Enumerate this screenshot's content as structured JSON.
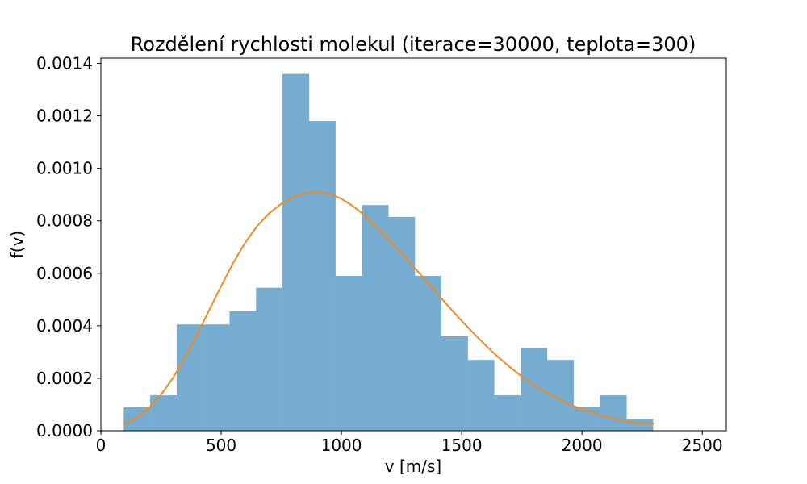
{
  "chart_data": {
    "type": "bar",
    "title": "Rozdělení rychlosti molekul (iterace=30000, teplota=300)",
    "xlabel": "v [m/s]",
    "ylabel": "f(v)",
    "xlim": [
      0,
      2600
    ],
    "ylim": [
      0,
      0.00142
    ],
    "xticks": [
      0,
      500,
      1000,
      1500,
      2000,
      2500
    ],
    "xtick_labels": [
      "0",
      "500",
      "1000",
      "1500",
      "2000",
      "2500"
    ],
    "yticks": [
      0,
      0.0002,
      0.0004,
      0.0006,
      0.0008,
      0.001,
      0.0012,
      0.0014
    ],
    "ytick_labels": [
      "0.0000",
      "0.0002",
      "0.0004",
      "0.0006",
      "0.0008",
      "0.0010",
      "0.0012",
      "0.0014"
    ],
    "grid": false,
    "histogram": {
      "color": "#77acd1",
      "bins": [
        {
          "x0": 95,
          "x1": 205,
          "value": 9e-05
        },
        {
          "x0": 205,
          "x1": 315,
          "value": 0.000135
        },
        {
          "x0": 315,
          "x1": 425,
          "value": 0.000405
        },
        {
          "x0": 425,
          "x1": 535,
          "value": 0.000405
        },
        {
          "x0": 535,
          "x1": 645,
          "value": 0.000455
        },
        {
          "x0": 645,
          "x1": 755,
          "value": 0.000545
        },
        {
          "x0": 755,
          "x1": 865,
          "value": 0.00136
        },
        {
          "x0": 865,
          "x1": 975,
          "value": 0.00118
        },
        {
          "x0": 975,
          "x1": 1085,
          "value": 0.00059
        },
        {
          "x0": 1085,
          "x1": 1195,
          "value": 0.00086
        },
        {
          "x0": 1195,
          "x1": 1305,
          "value": 0.000815
        },
        {
          "x0": 1305,
          "x1": 1415,
          "value": 0.00059
        },
        {
          "x0": 1415,
          "x1": 1525,
          "value": 0.00036
        },
        {
          "x0": 1525,
          "x1": 1635,
          "value": 0.00027
        },
        {
          "x0": 1635,
          "x1": 1745,
          "value": 0.000135
        },
        {
          "x0": 1745,
          "x1": 1855,
          "value": 0.000315
        },
        {
          "x0": 1855,
          "x1": 1965,
          "value": 0.00027
        },
        {
          "x0": 1965,
          "x1": 2075,
          "value": 9e-05
        },
        {
          "x0": 2075,
          "x1": 2185,
          "value": 0.000135
        },
        {
          "x0": 2185,
          "x1": 2295,
          "value": 4.5e-05
        }
      ]
    },
    "curve": {
      "color": "#f08a24",
      "x": [
        95,
        150,
        200,
        250,
        300,
        350,
        400,
        450,
        500,
        550,
        600,
        650,
        700,
        750,
        800,
        850,
        900,
        950,
        1000,
        1050,
        1100,
        1150,
        1200,
        1250,
        1300,
        1350,
        1400,
        1450,
        1500,
        1550,
        1600,
        1650,
        1700,
        1750,
        1800,
        1850,
        1900,
        1950,
        2000,
        2050,
        2100,
        2150,
        2200,
        2250,
        2300
      ],
      "y": [
        2.5e-05,
        5.1e-05,
        8.7e-05,
        0.000137,
        0.000202,
        0.00028,
        0.000367,
        0.000459,
        0.000551,
        0.000639,
        0.000717,
        0.00078,
        0.000829,
        0.000865,
        0.000891,
        0.000905,
        0.00091,
        0.000903,
        0.000884,
        0.000855,
        0.000818,
        0.000774,
        0.000726,
        0.000676,
        0.000625,
        0.000573,
        0.000521,
        0.000469,
        0.000419,
        0.000371,
        0.000325,
        0.000282,
        0.000243,
        0.000207,
        0.000175,
        0.000147,
        0.000122,
        0.0001,
        8.2e-05,
        6.6e-05,
        5.3e-05,
        4.2e-05,
        3.4e-05,
        2.7e-05,
        2.7e-05
      ]
    }
  }
}
